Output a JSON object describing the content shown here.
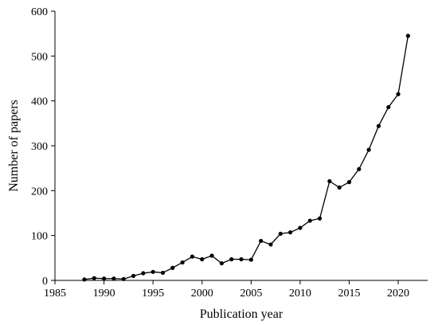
{
  "chart_data": {
    "type": "line",
    "title": "",
    "xlabel": "Publication year",
    "ylabel": "Number of papers",
    "xlim": [
      1985,
      2023
    ],
    "ylim": [
      0,
      600
    ],
    "xticks": [
      1985,
      1990,
      1995,
      2000,
      2005,
      2010,
      2015,
      2020
    ],
    "yticks": [
      0,
      100,
      200,
      300,
      400,
      500,
      600
    ],
    "grid": false,
    "legend": "none",
    "series": [
      {
        "color": "#000000",
        "marker": "circle",
        "x": [
          1988,
          1989,
          1990,
          1991,
          1992,
          1993,
          1994,
          1995,
          1996,
          1997,
          1998,
          1999,
          2000,
          2001,
          2002,
          2003,
          2004,
          2005,
          2006,
          2007,
          2008,
          2009,
          2010,
          2011,
          2012,
          2013,
          2014,
          2015,
          2016,
          2017,
          2018,
          2019,
          2020,
          2021
        ],
        "y": [
          2,
          5,
          4,
          4,
          3,
          10,
          16,
          19,
          17,
          28,
          40,
          53,
          47,
          55,
          38,
          47,
          47,
          46,
          88,
          80,
          104,
          107,
          117,
          133,
          138,
          221,
          207,
          219,
          248,
          291,
          344,
          386,
          415,
          545
        ]
      }
    ]
  }
}
